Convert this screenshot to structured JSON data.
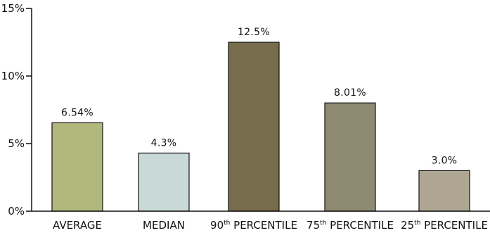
{
  "chart_data": {
    "type": "bar",
    "title": "",
    "xlabel": "",
    "ylabel": "",
    "ylim": [
      0,
      15
    ],
    "y_ticks": [
      {
        "value": 0,
        "label": "0%"
      },
      {
        "value": 5,
        "label": "5%"
      },
      {
        "value": 10,
        "label": "10%"
      },
      {
        "value": 15,
        "label": "15%"
      }
    ],
    "grid": false,
    "categories": [
      {
        "prefix": "AVERAGE",
        "sup": "",
        "suffix": ""
      },
      {
        "prefix": "MEDIAN",
        "sup": "",
        "suffix": ""
      },
      {
        "prefix": "90",
        "sup": "th",
        "suffix": " PERCENTILE"
      },
      {
        "prefix": "75",
        "sup": "th",
        "suffix": " PERCENTILE"
      },
      {
        "prefix": "25",
        "sup": "th",
        "suffix": " PERCENTILE"
      }
    ],
    "values": [
      6.54,
      4.3,
      12.5,
      8.01,
      3.0
    ],
    "value_labels": [
      "6.54%",
      "4.3%",
      "12.5%",
      "8.01%",
      "3.0%"
    ],
    "colors": [
      "#b2b77b",
      "#c9d9d8",
      "#776c4c",
      "#8f8a72",
      "#aea692"
    ]
  }
}
